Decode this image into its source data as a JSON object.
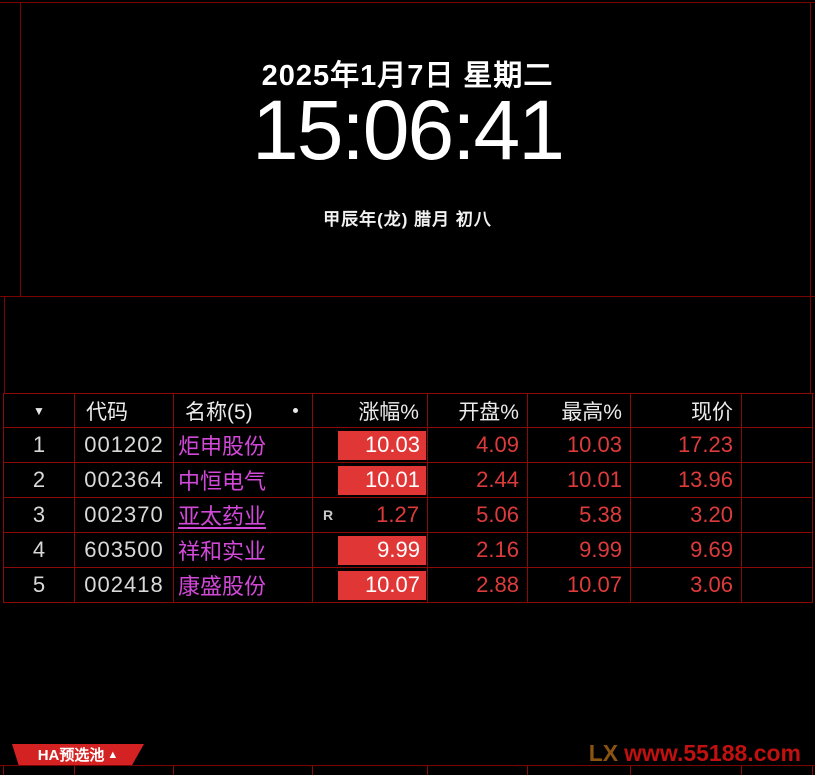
{
  "clock_panel": {
    "date": "2025年1月7日 星期二",
    "time": "15:06:41",
    "lunar": "甲辰年(龙) 腊月 初八"
  },
  "table": {
    "sort_icon": "▼",
    "headers": {
      "code": "代码",
      "name": "名称(5)",
      "change": "涨幅%",
      "open": "开盘%",
      "high": "最高%",
      "price": "现价"
    },
    "rows": [
      {
        "num": "1",
        "code": "001202",
        "name": "炬申股份",
        "name_underline": false,
        "r_badge": false,
        "change": "10.03",
        "change_highlight": true,
        "open": "4.09",
        "high": "10.03",
        "price": "17.23"
      },
      {
        "num": "2",
        "code": "002364",
        "name": "中恒电气",
        "name_underline": false,
        "r_badge": false,
        "change": "10.01",
        "change_highlight": true,
        "open": "2.44",
        "high": "10.01",
        "price": "13.96"
      },
      {
        "num": "3",
        "code": "002370",
        "name": "亚太药业",
        "name_underline": true,
        "r_badge": true,
        "change": "1.27",
        "change_highlight": false,
        "open": "5.06",
        "high": "5.38",
        "price": "3.20"
      },
      {
        "num": "4",
        "code": "603500",
        "name": "祥和实业",
        "name_underline": false,
        "r_badge": false,
        "change": "9.99",
        "change_highlight": true,
        "open": "2.16",
        "high": "9.99",
        "price": "9.69"
      },
      {
        "num": "5",
        "code": "002418",
        "name": "康盛股份",
        "name_underline": false,
        "r_badge": false,
        "change": "10.07",
        "change_highlight": true,
        "open": "2.88",
        "high": "10.07",
        "price": "3.06"
      }
    ],
    "r_badge_label": "R"
  },
  "footer": {
    "tab_label": "HA预选池",
    "tab_arrow": "▲",
    "watermark_lx": "LX",
    "watermark_url": "www.55188.com"
  },
  "colors": {
    "section_grid": "#7a0404",
    "table_grid": "#8a0a0a",
    "value_red": "#dd3b3b",
    "highlight_bg": "#e03636",
    "name_magenta": "#d248d8",
    "tab_bg": "#d42222"
  }
}
